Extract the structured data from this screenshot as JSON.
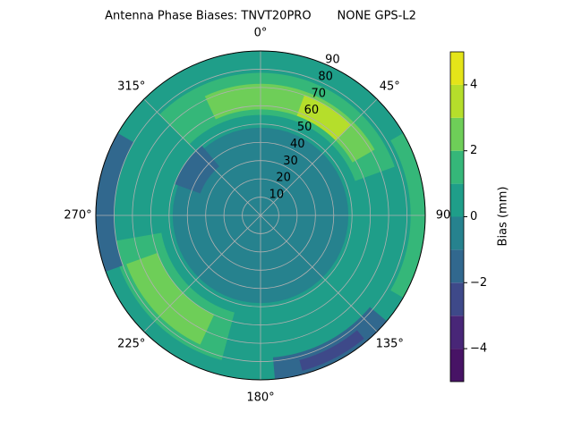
{
  "chart_data": {
    "type": "polar-contour",
    "title": "Antenna Phase Biases: TNVT20PRO       NONE GPS-L2",
    "theta_direction": "clockwise",
    "theta_zero": "N",
    "xlim": [
      0,
      360
    ],
    "xticks": [
      {
        "value": 0,
        "label": "0°"
      },
      {
        "value": 45,
        "label": "45°"
      },
      {
        "value": 90,
        "label": "90"
      },
      {
        "value": 135,
        "label": "135°"
      },
      {
        "value": 180,
        "label": "180°"
      },
      {
        "value": 225,
        "label": "225°"
      },
      {
        "value": 270,
        "label": "270°"
      },
      {
        "value": 315,
        "label": "315°"
      }
    ],
    "ylim": [
      0,
      90
    ],
    "yticks": [
      10,
      20,
      30,
      40,
      50,
      60,
      70,
      80,
      90
    ],
    "grid": true,
    "levels": [
      -5,
      -4,
      -3,
      -2,
      -1,
      0,
      1,
      2,
      3,
      4,
      5
    ],
    "colors": [
      "#471365",
      "#482677",
      "#3e4989",
      "#31688e",
      "#26828e",
      "#1f9e89",
      "#35b779",
      "#6ece58",
      "#b5de2b",
      "#e4e419"
    ],
    "regions": [
      {
        "level": 0,
        "az": [
          0,
          360
        ],
        "zen": [
          0,
          90
        ]
      },
      {
        "level": -1,
        "az": [
          0,
          360
        ],
        "zen": [
          0,
          48
        ]
      },
      {
        "level": 1,
        "az": [
          315,
          430
        ],
        "zen": [
          55,
          78
        ]
      },
      {
        "level": 2,
        "az": [
          335,
          420
        ],
        "zen": [
          58,
          72
        ]
      },
      {
        "level": 3,
        "az": [
          20,
          45
        ],
        "zen": [
          58,
          70
        ]
      },
      {
        "level": 1,
        "az": [
          195,
          260
        ],
        "zen": [
          55,
          82
        ]
      },
      {
        "level": 2,
        "az": [
          205,
          250
        ],
        "zen": [
          60,
          78
        ]
      },
      {
        "level": 1,
        "az": [
          60,
          120
        ],
        "zen": [
          82,
          90
        ]
      },
      {
        "level": -2,
        "az": [
          130,
          175
        ],
        "zen": [
          78,
          90
        ]
      },
      {
        "level": -3,
        "az": [
          140,
          165
        ],
        "zen": [
          82,
          88
        ]
      },
      {
        "level": -2,
        "az": [
          250,
          300
        ],
        "zen": [
          80,
          90
        ]
      },
      {
        "level": -2,
        "az": [
          290,
          320
        ],
        "zen": [
          35,
          50
        ]
      }
    ],
    "colorbar_ticks": [
      {
        "value": -4,
        "label": "−4"
      },
      {
        "value": -2,
        "label": "−2"
      },
      0,
      2,
      4
    ],
    "colorbar_label": "Bias (mm)"
  }
}
